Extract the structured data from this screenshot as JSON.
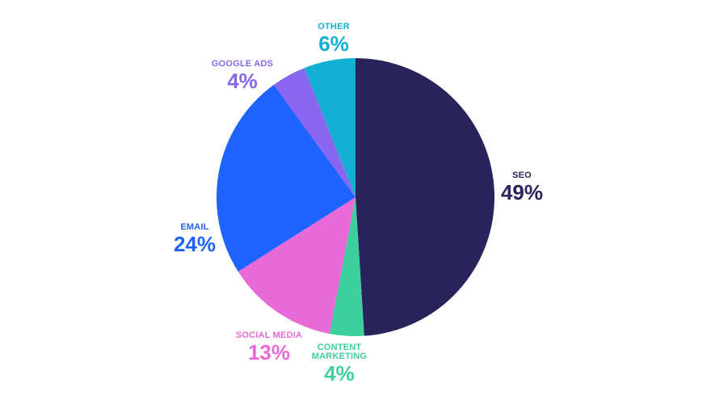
{
  "chart_data": {
    "type": "pie",
    "categories": [
      "SEO",
      "CONTENT MARKETING",
      "SOCIAL MEDIA",
      "EMAIL",
      "GOOGLE ADS",
      "OTHER"
    ],
    "values": [
      49,
      4,
      13,
      24,
      4,
      6
    ],
    "value_labels": [
      "49%",
      "4%",
      "13%",
      "24%",
      "4%",
      "6%"
    ],
    "colors": [
      "#28235a",
      "#3ecf9e",
      "#e86ad6",
      "#1f63ff",
      "#8a66ee",
      "#14b0d4"
    ]
  }
}
